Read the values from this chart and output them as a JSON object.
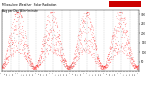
{
  "title": "Milwaukee Weather  Solar Radiation",
  "subtitle": "Avg per Day W/m²/minute",
  "dot_color": "#ff0000",
  "black_dot_color": "#000000",
  "background_color": "#ffffff",
  "ylim": [
    0,
    320
  ],
  "ytick_values": [
    50,
    100,
    150,
    200,
    250,
    300
  ],
  "legend_highlight_color": "#cc0000",
  "grid_color": "#bbbbbb",
  "num_days": 1461,
  "start_year": 2007
}
